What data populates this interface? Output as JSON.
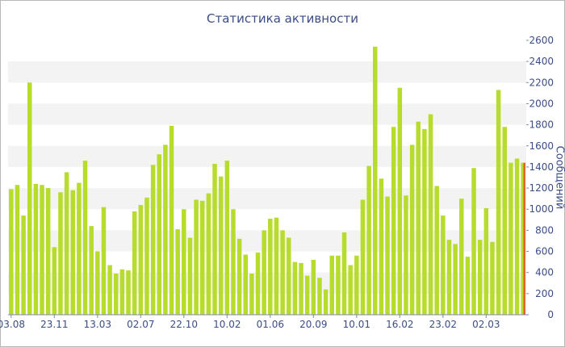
{
  "chart_data": {
    "type": "bar",
    "title": "Статистика активности",
    "xlabel": "",
    "ylabel": "Сообщений",
    "ylim": [
      0,
      2600
    ],
    "yticks": [
      0,
      200,
      400,
      600,
      800,
      1000,
      1200,
      1400,
      1600,
      1800,
      2000,
      2200,
      2400,
      2600
    ],
    "y_axis_side": "right",
    "grid": "alternating horizontal bands",
    "x_tick_labels": [
      {
        "label": "03.08",
        "index": 0
      },
      {
        "label": "23.11",
        "index": 7
      },
      {
        "label": "13.03",
        "index": 14
      },
      {
        "label": "02.07",
        "index": 21
      },
      {
        "label": "22.10",
        "index": 28
      },
      {
        "label": "10.02",
        "index": 35
      },
      {
        "label": "01.06",
        "index": 42
      },
      {
        "label": "20.09",
        "index": 49
      },
      {
        "label": "10.01",
        "index": 56
      },
      {
        "label": "16.02",
        "index": 63
      },
      {
        "label": "23.02",
        "index": 70
      },
      {
        "label": "02.03",
        "index": 77
      }
    ],
    "series": [
      {
        "color": "#b7dc2c",
        "values": [
          1190,
          1230,
          940,
          2200,
          1240,
          1230,
          1200,
          640,
          1160,
          1350,
          1180,
          1250,
          1460,
          840,
          600,
          1020,
          470,
          390,
          430,
          420,
          980,
          1040,
          1110,
          1420,
          1520,
          1610,
          1790,
          810,
          1000,
          730,
          1090,
          1080,
          1150,
          1430,
          1310,
          1460,
          1000,
          720,
          570,
          390,
          590,
          800,
          910,
          920,
          800,
          730,
          500,
          490,
          370,
          520,
          350,
          240,
          560,
          560,
          780,
          470,
          560,
          1090,
          1410,
          2540,
          1290,
          1120,
          1780,
          2150,
          1130,
          1610,
          1830,
          1760,
          1900,
          1220,
          940,
          710,
          670,
          1100,
          550,
          1390,
          710,
          1010,
          690,
          2130,
          1780,
          1440,
          1480
        ]
      },
      {
        "color": "#e2612b",
        "values": [
          1440
        ]
      }
    ]
  }
}
